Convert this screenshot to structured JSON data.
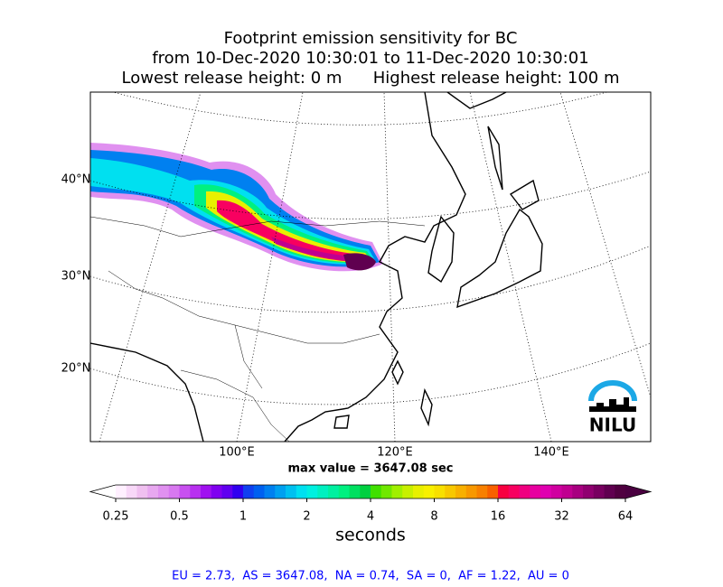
{
  "title": {
    "lines": [
      "Footprint emission sensitivity for BC",
      "from 10-Dec-2020 10:30:01 to 11-Dec-2020 10:30:01",
      "Lowest release height: 0 m      Highest release height: 100 m"
    ]
  },
  "map": {
    "lat_labels": [
      "40°N",
      "30°N",
      "20°N"
    ],
    "lon_labels": [
      "100°E",
      "120°E",
      "140°E"
    ],
    "max_value_text": "max value = 3647.08 sec",
    "logo": "NILU"
  },
  "colorbar": {
    "scale": "log",
    "lim": [
      0.25,
      64
    ],
    "ticks": [
      0.25,
      0.5,
      1,
      2,
      4,
      8,
      16,
      32,
      64
    ],
    "label": "seconds",
    "colors": [
      "#fff0ff",
      "#f8d8f8",
      "#f0c0f0",
      "#e8a8f0",
      "#e090f0",
      "#d878f0",
      "#c850f0",
      "#b830f0",
      "#a010f0",
      "#8000f0",
      "#6000f0",
      "#3000f0",
      "#1040f0",
      "#0060f0",
      "#0080f0",
      "#00a0f0",
      "#00c0f0",
      "#00e0f0",
      "#00f0e0",
      "#00f0c0",
      "#00f0a0",
      "#00f080",
      "#00e060",
      "#00d040",
      "#40e000",
      "#70e800",
      "#a0f000",
      "#c8f000",
      "#e8f000",
      "#f8f000",
      "#f8e000",
      "#f8c800",
      "#f8b000",
      "#f89800",
      "#f88000",
      "#f86000",
      "#f80040",
      "#f80060",
      "#f00080",
      "#e800a0",
      "#e000b0",
      "#d000a0",
      "#c00090",
      "#a80080",
      "#900070",
      "#780060",
      "#600050",
      "#500040"
    ],
    "extend_colors": [
      "#ffffff",
      "#4a0040"
    ]
  },
  "footer": "EU = 2.73,  AS = 3647.08,  NA = 0.74,  SA = 0,  AF = 1.22,  AU = 0"
}
